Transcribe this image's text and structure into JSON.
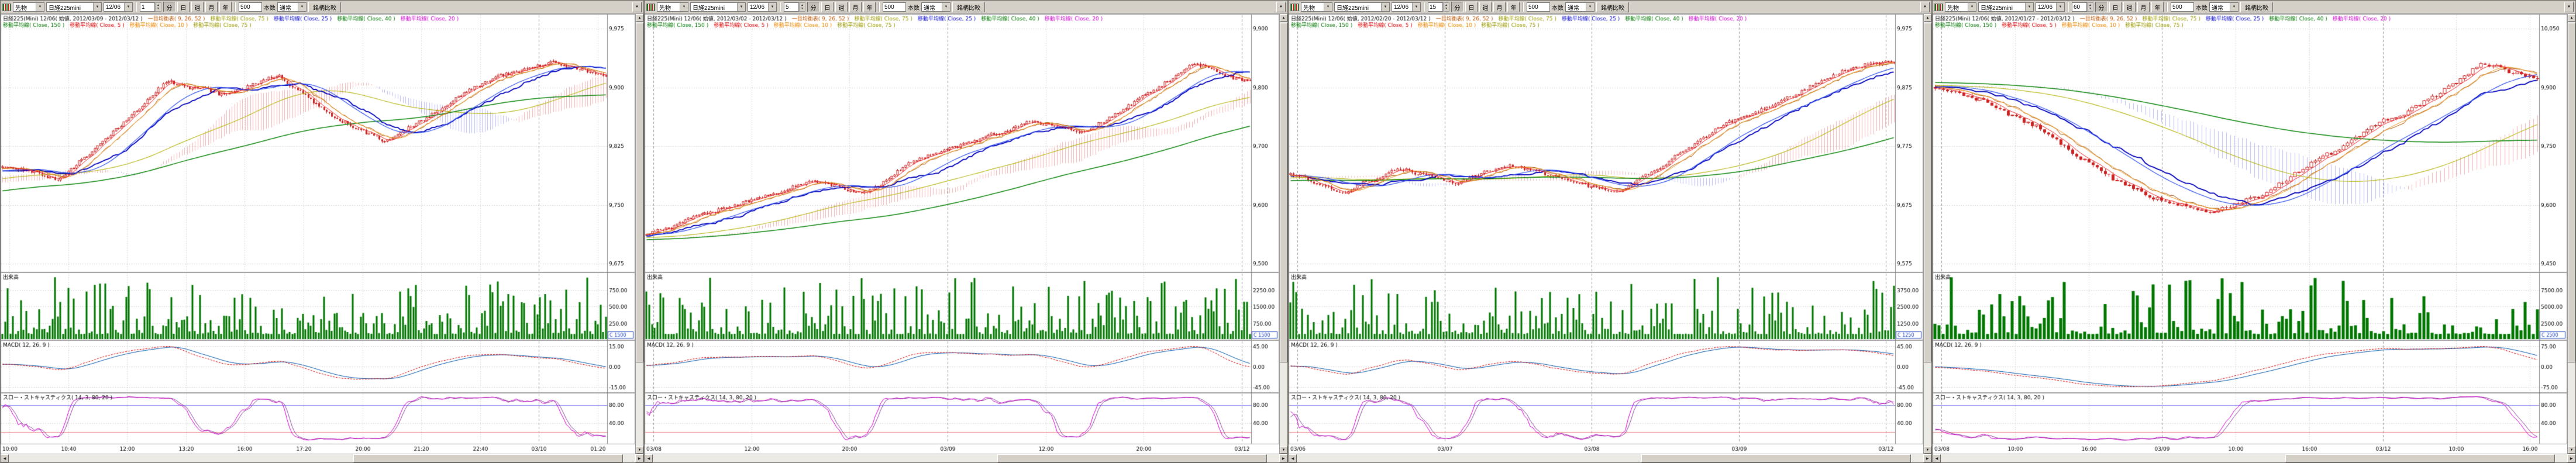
{
  "icons": {
    "combo_arrow": "▼",
    "spin_up": "▲",
    "spin_down": "▼",
    "scroll_left": "◀",
    "scroll_right": "▶",
    "scroll_up": "▲",
    "scroll_down": "▼"
  },
  "colors": {
    "chrome": "#d4d0c8",
    "candle_up": "#cc2222",
    "candle_down": "#cc2222",
    "volume_bar": "#007700",
    "ma5": "#ee2222",
    "ma10": "#ee9922",
    "ma25": "#3355ee",
    "ma75": "#bbbb22",
    "ma150": "#118811",
    "tenkan": "#aa5500",
    "kijun": "#0000bb",
    "cloud_up": "rgba(220,40,40,0.35)",
    "cloud_down": "rgba(60,60,220,0.35)",
    "macd_line": "#dd0000",
    "macd_signal": "#0055aa",
    "stoch_k": "#cc00cc",
    "stoch_d": "#884499",
    "stoch_high_line": "#8888ee",
    "stoch_low_line": "#ee8888",
    "grid": "#c8c8c8"
  },
  "panels": [
    {
      "toolbar": {
        "market": "先物",
        "symbol": "日経225mini",
        "contract": "12/06",
        "interval_value": "1",
        "periods": [
          "分",
          "日",
          "週",
          "月",
          "年"
        ],
        "active_period": "分",
        "bars_value": "500",
        "bars_label": "本数",
        "mode": "通常",
        "compare_label": "銘柄比較"
      },
      "legend_line1": [
        {
          "text": "日経225(Mini) 12/06( 始値, 2012/03/09 - 2012/03/12 )",
          "color": "#000000"
        },
        {
          "text": "一目均衡表( 9, 26, 52 )",
          "color": "#bb5500"
        },
        {
          "text": "移動平均線( Close, 75 )",
          "color": "#999900"
        },
        {
          "text": "移動平均線( Close, 25 )",
          "color": "#0000cc"
        },
        {
          "text": "移動平均線( Close, 40 )",
          "color": "#007700"
        },
        {
          "text": "移動平均線( Close, 20 )",
          "color": "#cc00cc"
        }
      ],
      "legend_line2": [
        {
          "text": "移動平均線( Close, 150 )",
          "color": "#007700"
        },
        {
          "text": "移動平均線( Close, 5 )",
          "color": "#dd0000"
        },
        {
          "text": "移動平均線( Close, 10 )",
          "color": "#ee8800"
        },
        {
          "text": "移動平均線( Close, 75 )",
          "color": "#999900"
        }
      ],
      "panes": {
        "volume_label": "出来高",
        "volume_badge": "C 1500",
        "macd_label": "MACD( 12, 26, 9 )",
        "stoch_label": "スロー・ストキャスティクス( 14, 3, 80, 20 )"
      },
      "axes": {
        "price_labels": [
          "9,975",
          "9,900",
          "9,825",
          "9,750",
          "9,675"
        ],
        "volume_labels": [
          "750.00",
          "500.00",
          "250.00"
        ],
        "macd_labels": [
          "15.00",
          "0.00",
          "-15.00"
        ],
        "stoch_labels": [
          "80.00",
          "40.00"
        ],
        "x_labels": [
          "10:00",
          "10:40",
          "12:00",
          "13:20",
          "16:00",
          "17:20",
          "20:00",
          "21:20",
          "22:40",
          "03/10",
          "01:20"
        ]
      }
    },
    {
      "toolbar": {
        "market": "先物",
        "symbol": "日経225mini",
        "contract": "12/06",
        "interval_value": "5",
        "periods": [
          "分",
          "日",
          "週",
          "月",
          "年"
        ],
        "active_period": "分",
        "bars_value": "500",
        "bars_label": "本数",
        "mode": "通常",
        "compare_label": "銘柄比較"
      },
      "legend_line1": [
        {
          "text": "日経225(Mini) 12/06( 始値, 2012/03/02 - 2012/03/12 )",
          "color": "#000000"
        },
        {
          "text": "一目均衡表( 9, 26, 52 )",
          "color": "#bb5500"
        },
        {
          "text": "移動平均線( Close, 75 )",
          "color": "#999900"
        },
        {
          "text": "移動平均線( Close, 25 )",
          "color": "#0000cc"
        },
        {
          "text": "移動平均線( Close, 40 )",
          "color": "#007700"
        },
        {
          "text": "移動平均線( Close, 20 )",
          "color": "#cc00cc"
        }
      ],
      "legend_line2": [
        {
          "text": "移動平均線( Close, 150 )",
          "color": "#007700"
        },
        {
          "text": "移動平均線( Close, 5 )",
          "color": "#dd0000"
        },
        {
          "text": "移動平均線( Close, 10 )",
          "color": "#ee8800"
        },
        {
          "text": "移動平均線( Close, 75 )",
          "color": "#999900"
        }
      ],
      "panes": {
        "volume_label": "出来高",
        "volume_badge": "C 1500",
        "macd_label": "MACD( 12, 26, 9 )",
        "stoch_label": "スロー・ストキャスティクス( 14, 3, 80, 20 )"
      },
      "axes": {
        "price_labels": [
          "9,900",
          "9,800",
          "9,700",
          "9,600",
          "9,500"
        ],
        "volume_labels": [
          "2250.00",
          "1500.00",
          "750.00"
        ],
        "macd_labels": [
          "45.00",
          "0.00",
          "-45.00"
        ],
        "stoch_labels": [
          "80.00",
          "40.00"
        ],
        "x_labels": [
          "03/08",
          "12:00",
          "20:00",
          "03/09",
          "12:00",
          "20:00",
          "03/12"
        ]
      }
    },
    {
      "toolbar": {
        "market": "先物",
        "symbol": "日経225mini",
        "contract": "12/06",
        "interval_value": "15",
        "periods": [
          "分",
          "日",
          "週",
          "月",
          "年"
        ],
        "active_period": "分",
        "bars_value": "500",
        "bars_label": "本数",
        "mode": "通常",
        "compare_label": "銘柄比較"
      },
      "legend_line1": [
        {
          "text": "日経225(Mini) 12/06( 始値, 2012/02/20 - 2012/03/12 )",
          "color": "#000000"
        },
        {
          "text": "一目均衡表( 9, 26, 52 )",
          "color": "#bb5500"
        },
        {
          "text": "移動平均線( Close, 75 )",
          "color": "#999900"
        },
        {
          "text": "移動平均線( Close, 25 )",
          "color": "#0000cc"
        },
        {
          "text": "移動平均線( Close, 40 )",
          "color": "#007700"
        },
        {
          "text": "移動平均線( Close, 20 )",
          "color": "#cc00cc"
        }
      ],
      "legend_line2": [
        {
          "text": "移動平均線( Close, 150 )",
          "color": "#007700"
        },
        {
          "text": "移動平均線( Close, 5 )",
          "color": "#dd0000"
        },
        {
          "text": "移動平均線( Close, 10 )",
          "color": "#ee8800"
        },
        {
          "text": "移動平均線( Close, 75 )",
          "color": "#999900"
        }
      ],
      "panes": {
        "volume_label": "出来高",
        "volume_badge": "C 1250",
        "macd_label": "MACD( 12, 26, 9 )",
        "stoch_label": "スロー・ストキャスティクス( 14, 3, 80, 20 )"
      },
      "axes": {
        "price_labels": [
          "9,975",
          "9,875",
          "9,775",
          "9,675",
          "9,575"
        ],
        "volume_labels": [
          "3750.00",
          "2500.00",
          "1250.00"
        ],
        "macd_labels": [
          "45.00",
          "0.00",
          "-45.00"
        ],
        "stoch_labels": [
          "80.00",
          "40.00"
        ],
        "x_labels": [
          "03/06",
          "03/07",
          "03/08",
          "03/09",
          "03/12"
        ]
      }
    },
    {
      "toolbar": {
        "market": "先物",
        "symbol": "日経225mini",
        "contract": "12/06",
        "interval_value": "60",
        "periods": [
          "分",
          "日",
          "週",
          "月",
          "年"
        ],
        "active_period": "分",
        "bars_value": "500",
        "bars_label": "本数",
        "mode": "通常",
        "compare_label": "銘柄比較"
      },
      "legend_line1": [
        {
          "text": "日経225(Mini) 12/06( 始値, 2012/01/27 - 2012/03/12 )",
          "color": "#000000"
        },
        {
          "text": "一目均衡表( 9, 26, 52 )",
          "color": "#bb5500"
        },
        {
          "text": "移動平均線( Close, 75 )",
          "color": "#999900"
        },
        {
          "text": "移動平均線( Close, 25 )",
          "color": "#0000cc"
        },
        {
          "text": "移動平均線( Close, 40 )",
          "color": "#007700"
        },
        {
          "text": "移動平均線( Close, 20 )",
          "color": "#cc00cc"
        }
      ],
      "legend_line2": [
        {
          "text": "移動平均線( Close, 150 )",
          "color": "#007700"
        },
        {
          "text": "移動平均線( Close, 5 )",
          "color": "#dd0000"
        },
        {
          "text": "移動平均線( Close, 10 )",
          "color": "#ee8800"
        },
        {
          "text": "移動平均線( Close, 75 )",
          "color": "#999900"
        }
      ],
      "panes": {
        "volume_label": "出来高",
        "volume_badge": "C 2500",
        "macd_label": "MACD( 12, 26, 9 )",
        "stoch_label": "スロー・ストキャスティクス( 14, 3, 80, 20 )"
      },
      "axes": {
        "price_labels": [
          "10,050",
          "9,900",
          "9,750",
          "9,600",
          "9,450"
        ],
        "volume_labels": [
          "7500.00",
          "5000.00",
          "2500.00"
        ],
        "macd_labels": [
          "75.00",
          "0.00",
          "-75.00"
        ],
        "stoch_labels": [
          "80.00",
          "40.00"
        ],
        "x_labels": [
          "03/08",
          "10:00",
          "16:00",
          "03/09",
          "10:00",
          "16:00",
          "03/12",
          "10:00",
          "16:00"
        ]
      }
    }
  ],
  "chart_data": [
    {
      "type": "candlestick",
      "title": "日経225mini 12/06 1分足",
      "overlays": [
        "一目均衡表(9,26,52)",
        "MA5",
        "MA10",
        "MA25",
        "MA75",
        "MA150"
      ],
      "studies": [
        "出来高",
        "MACD(12,26,9)",
        "スロー・ストキャスティクス(14,3,80,20)"
      ],
      "bars": 230,
      "seed": 11,
      "volatility": 0.016,
      "price_range": [
        9675,
        9975
      ],
      "path_pre": 0.18,
      "path": [
        0.42,
        0.35,
        0.55,
        0.78,
        0.72,
        0.8,
        0.62,
        0.52,
        0.66,
        0.8,
        0.86,
        0.8
      ]
    },
    {
      "type": "candlestick",
      "title": "日経225mini 12/06 5分足",
      "overlays": [
        "一目均衡表(9,26,52)",
        "MA5",
        "MA10",
        "MA25",
        "MA75",
        "MA150"
      ],
      "studies": [
        "出来高",
        "MACD(12,26,9)",
        "スロー・ストキャスティクス(14,3,80,20)"
      ],
      "bars": 220,
      "seed": 22,
      "volatility": 0.015,
      "price_range": [
        9500,
        9900
      ],
      "path_pre": 0.08,
      "path": [
        0.12,
        0.2,
        0.28,
        0.35,
        0.3,
        0.45,
        0.52,
        0.6,
        0.55,
        0.7,
        0.85,
        0.78
      ]
    },
    {
      "type": "candlestick",
      "title": "日経225mini 12/06 15分足",
      "overlays": [
        "一目均衡表(9,26,52)",
        "MA5",
        "MA10",
        "MA25",
        "MA75",
        "MA150"
      ],
      "studies": [
        "出来高",
        "MACD(12,26,9)",
        "スロー・ストキャスティクス(14,3,80,20)"
      ],
      "bars": 210,
      "seed": 33,
      "volatility": 0.016,
      "price_range": [
        9575,
        9975
      ],
      "path_pre": 0.32,
      "path": [
        0.38,
        0.3,
        0.4,
        0.33,
        0.42,
        0.36,
        0.3,
        0.45,
        0.6,
        0.7,
        0.82,
        0.86
      ]
    },
    {
      "type": "candlestick",
      "title": "日経225mini 12/06 60分足",
      "overlays": [
        "一目均衡表(9,26,52)",
        "MA5",
        "MA10",
        "MA25",
        "MA75",
        "MA150"
      ],
      "studies": [
        "出来高",
        "MACD(12,26,9)",
        "スロー・ストキャスティクス(14,3,80,20)"
      ],
      "bars": 150,
      "seed": 44,
      "volatility": 0.02,
      "price_range": [
        9450,
        10050
      ],
      "path_pre": 0.8,
      "path": [
        0.75,
        0.68,
        0.55,
        0.4,
        0.28,
        0.22,
        0.3,
        0.45,
        0.58,
        0.7,
        0.85,
        0.78
      ]
    }
  ]
}
